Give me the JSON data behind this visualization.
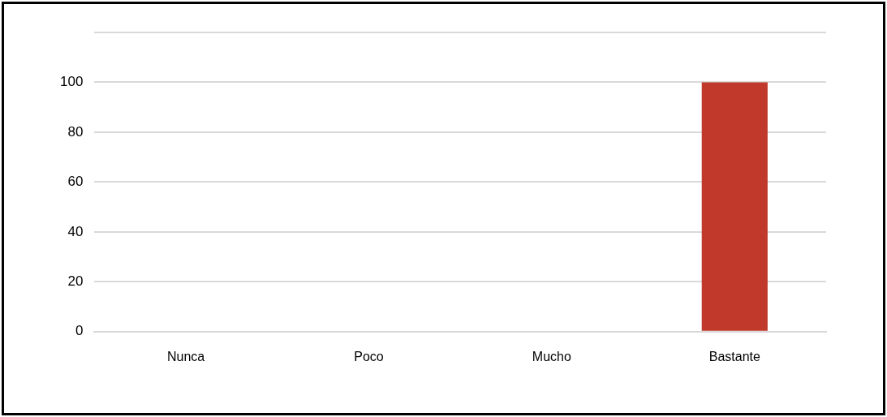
{
  "chart_data": {
    "type": "bar",
    "categories": [
      "Nunca",
      "Poco",
      "Mucho",
      "Bastante"
    ],
    "values": [
      0,
      0,
      0,
      100
    ],
    "colors": [
      "#6b1a1a",
      "#6b1a1a",
      "#6b1a1a",
      "#c0392b"
    ],
    "ylim": [
      0,
      120
    ],
    "yticks": [
      0,
      20,
      40,
      60,
      80,
      100,
      {
        "value": 120,
        "label": null
      }
    ],
    "grid": "y",
    "legend": false
  }
}
